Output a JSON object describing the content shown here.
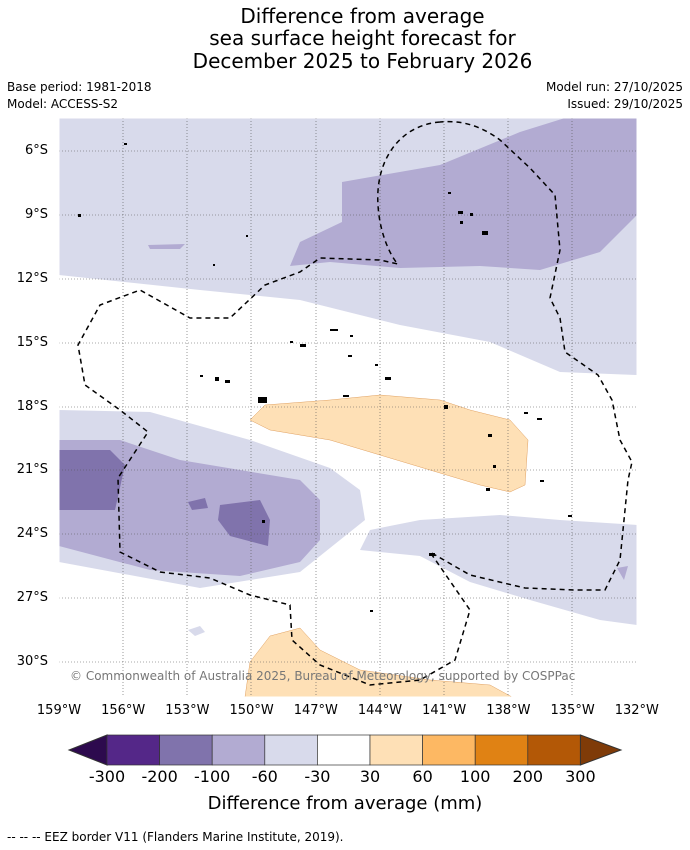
{
  "title": [
    "Difference from average",
    "sea surface height forecast for",
    "December 2025 to February 2026"
  ],
  "base_period": "Base period: 1981-2018",
  "model": "Model: ACCESS-S2",
  "model_run": "Model run: 27/10/2025",
  "issued": "Issued: 29/10/2025",
  "lat_ticks": [
    "6°S",
    "9°S",
    "12°S",
    "15°S",
    "18°S",
    "21°S",
    "24°S",
    "27°S",
    "30°S"
  ],
  "lon_ticks": [
    "159°W",
    "156°W",
    "153°W",
    "150°W",
    "147°W",
    "144°W",
    "141°W",
    "138°W",
    "135°W",
    "132°W"
  ],
  "copyright": "© Commonwealth of Australia 2025, Bureau of Meteorology, supported by COSPPac",
  "colorbar": {
    "labels": [
      "-300",
      "-200",
      "-100",
      "-60",
      "-30",
      "30",
      "60",
      "100",
      "200",
      "300"
    ],
    "colors": [
      "#2d0a4e",
      "#542788",
      "#8073ac",
      "#b2abd2",
      "#d8daeb",
      "#ffffff",
      "#fee0b6",
      "#fdb863",
      "#e08214",
      "#b35806",
      "#7f3b08"
    ],
    "title": "Difference from average (mm)"
  },
  "legend": "--  --  -- EEZ border V11 (Flanders Marine Institute, 2019)."
}
